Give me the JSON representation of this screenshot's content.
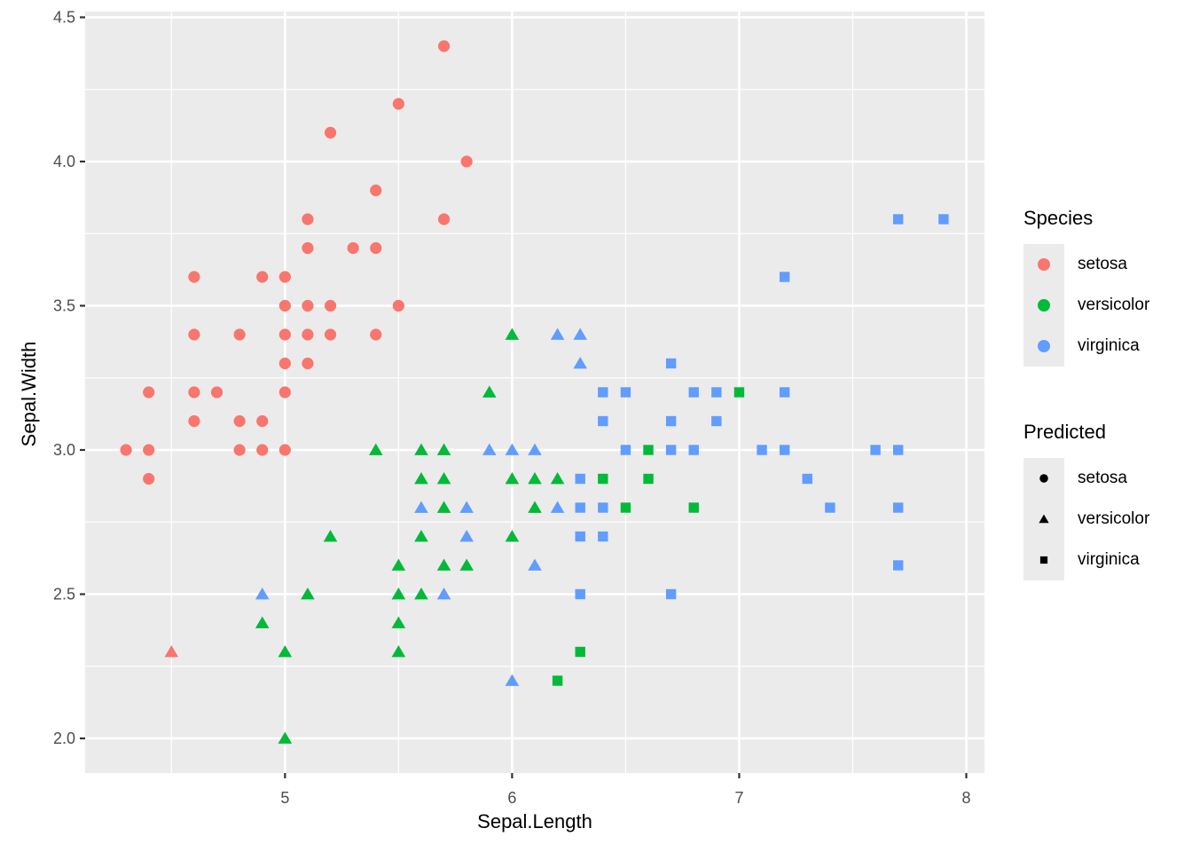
{
  "figure": {
    "background": "#ffffff"
  },
  "axes": {
    "x_title": "Sepal.Length",
    "y_title": "Sepal.Width",
    "tick_color": "#333333",
    "tick_label_color": "#4D4D4D",
    "panel_bg": "#EBEBEB",
    "grid_color": "#FFFFFF"
  },
  "legends": [
    {
      "title": "Species",
      "mode": "color",
      "marker": "circle",
      "items": [
        {
          "label": "setosa",
          "color": "#F8766D",
          "shape": "circle"
        },
        {
          "label": "versicolor",
          "color": "#00BA38",
          "shape": "circle"
        },
        {
          "label": "virginica",
          "color": "#619CFF",
          "shape": "circle"
        }
      ]
    },
    {
      "title": "Predicted",
      "mode": "shape",
      "marker_color": "#000000",
      "items": [
        {
          "label": "setosa",
          "color": "#000000",
          "shape": "circle"
        },
        {
          "label": "versicolor",
          "color": "#000000",
          "shape": "triangle"
        },
        {
          "label": "virginica",
          "color": "#000000",
          "shape": "square"
        }
      ]
    }
  ],
  "chart_data": {
    "type": "scatter",
    "xlabel": "Sepal.Length",
    "ylabel": "Sepal.Width",
    "xlim": [
      4.12,
      8.08
    ],
    "ylim": [
      1.88,
      4.52
    ],
    "x_major_ticks": [
      {
        "v": 5,
        "label": "5"
      },
      {
        "v": 6,
        "label": "6"
      },
      {
        "v": 7,
        "label": "7"
      },
      {
        "v": 8,
        "label": "8"
      }
    ],
    "y_major_ticks": [
      {
        "v": 2.0,
        "label": "2.0"
      },
      {
        "v": 2.5,
        "label": "2.5"
      },
      {
        "v": 3.0,
        "label": "3.0"
      },
      {
        "v": 3.5,
        "label": "3.5"
      },
      {
        "v": 4.0,
        "label": "4.0"
      },
      {
        "v": 4.5,
        "label": "4.5"
      }
    ],
    "x_minor_ticks": [
      4.5,
      5.5,
      6.5,
      7.5
    ],
    "y_minor_ticks": [
      2.25,
      2.75,
      3.25,
      3.75,
      4.25
    ],
    "color_by": "species",
    "shape_by": "predicted",
    "species_colors": {
      "setosa": "#F8766D",
      "versicolor": "#00BA38",
      "virginica": "#619CFF"
    },
    "predicted_shapes": {
      "setosa": "circle",
      "versicolor": "triangle",
      "virginica": "square"
    },
    "points": [
      {
        "x": 4.3,
        "y": 3.0,
        "species": "setosa",
        "predicted": "setosa"
      },
      {
        "x": 4.4,
        "y": 2.9,
        "species": "setosa",
        "predicted": "setosa"
      },
      {
        "x": 4.4,
        "y": 3.0,
        "species": "setosa",
        "predicted": "setosa"
      },
      {
        "x": 4.4,
        "y": 3.2,
        "species": "setosa",
        "predicted": "setosa"
      },
      {
        "x": 4.5,
        "y": 2.3,
        "species": "setosa",
        "predicted": "versicolor"
      },
      {
        "x": 4.6,
        "y": 3.1,
        "species": "setosa",
        "predicted": "setosa"
      },
      {
        "x": 4.6,
        "y": 3.2,
        "species": "setosa",
        "predicted": "setosa"
      },
      {
        "x": 4.6,
        "y": 3.4,
        "species": "setosa",
        "predicted": "setosa"
      },
      {
        "x": 4.6,
        "y": 3.6,
        "species": "setosa",
        "predicted": "setosa"
      },
      {
        "x": 4.7,
        "y": 3.2,
        "species": "setosa",
        "predicted": "setosa"
      },
      {
        "x": 4.8,
        "y": 3.0,
        "species": "setosa",
        "predicted": "setosa"
      },
      {
        "x": 4.8,
        "y": 3.1,
        "species": "setosa",
        "predicted": "setosa"
      },
      {
        "x": 4.8,
        "y": 3.4,
        "species": "setosa",
        "predicted": "setosa"
      },
      {
        "x": 4.9,
        "y": 3.0,
        "species": "setosa",
        "predicted": "setosa"
      },
      {
        "x": 4.9,
        "y": 3.1,
        "species": "setosa",
        "predicted": "setosa"
      },
      {
        "x": 4.9,
        "y": 3.6,
        "species": "setosa",
        "predicted": "setosa"
      },
      {
        "x": 5.0,
        "y": 3.0,
        "species": "setosa",
        "predicted": "setosa"
      },
      {
        "x": 5.0,
        "y": 3.2,
        "species": "setosa",
        "predicted": "setosa"
      },
      {
        "x": 5.0,
        "y": 3.3,
        "species": "setosa",
        "predicted": "setosa"
      },
      {
        "x": 5.0,
        "y": 3.4,
        "species": "setosa",
        "predicted": "setosa"
      },
      {
        "x": 5.0,
        "y": 3.5,
        "species": "setosa",
        "predicted": "setosa"
      },
      {
        "x": 5.0,
        "y": 3.6,
        "species": "setosa",
        "predicted": "setosa"
      },
      {
        "x": 5.1,
        "y": 3.3,
        "species": "setosa",
        "predicted": "setosa"
      },
      {
        "x": 5.1,
        "y": 3.4,
        "species": "setosa",
        "predicted": "setosa"
      },
      {
        "x": 5.1,
        "y": 3.5,
        "species": "setosa",
        "predicted": "setosa"
      },
      {
        "x": 5.1,
        "y": 3.7,
        "species": "setosa",
        "predicted": "setosa"
      },
      {
        "x": 5.1,
        "y": 3.8,
        "species": "setosa",
        "predicted": "setosa"
      },
      {
        "x": 5.2,
        "y": 3.4,
        "species": "setosa",
        "predicted": "setosa"
      },
      {
        "x": 5.2,
        "y": 3.5,
        "species": "setosa",
        "predicted": "setosa"
      },
      {
        "x": 5.2,
        "y": 4.1,
        "species": "setosa",
        "predicted": "setosa"
      },
      {
        "x": 5.3,
        "y": 3.7,
        "species": "setosa",
        "predicted": "setosa"
      },
      {
        "x": 5.4,
        "y": 3.4,
        "species": "setosa",
        "predicted": "setosa"
      },
      {
        "x": 5.4,
        "y": 3.7,
        "species": "setosa",
        "predicted": "setosa"
      },
      {
        "x": 5.4,
        "y": 3.9,
        "species": "setosa",
        "predicted": "setosa"
      },
      {
        "x": 5.5,
        "y": 3.5,
        "species": "setosa",
        "predicted": "setosa"
      },
      {
        "x": 5.5,
        "y": 4.2,
        "species": "setosa",
        "predicted": "setosa"
      },
      {
        "x": 5.7,
        "y": 3.8,
        "species": "setosa",
        "predicted": "setosa"
      },
      {
        "x": 5.7,
        "y": 4.4,
        "species": "setosa",
        "predicted": "setosa"
      },
      {
        "x": 5.8,
        "y": 4.0,
        "species": "setosa",
        "predicted": "setosa"
      },
      {
        "x": 4.9,
        "y": 2.4,
        "species": "versicolor",
        "predicted": "versicolor"
      },
      {
        "x": 5.0,
        "y": 2.0,
        "species": "versicolor",
        "predicted": "versicolor"
      },
      {
        "x": 5.0,
        "y": 2.3,
        "species": "versicolor",
        "predicted": "versicolor"
      },
      {
        "x": 5.1,
        "y": 2.5,
        "species": "versicolor",
        "predicted": "versicolor"
      },
      {
        "x": 5.2,
        "y": 2.7,
        "species": "versicolor",
        "predicted": "versicolor"
      },
      {
        "x": 5.4,
        "y": 3.0,
        "species": "versicolor",
        "predicted": "versicolor"
      },
      {
        "x": 5.5,
        "y": 2.3,
        "species": "versicolor",
        "predicted": "versicolor"
      },
      {
        "x": 5.5,
        "y": 2.4,
        "species": "versicolor",
        "predicted": "versicolor"
      },
      {
        "x": 5.5,
        "y": 2.5,
        "species": "versicolor",
        "predicted": "versicolor"
      },
      {
        "x": 5.5,
        "y": 2.6,
        "species": "versicolor",
        "predicted": "versicolor"
      },
      {
        "x": 5.6,
        "y": 2.5,
        "species": "versicolor",
        "predicted": "versicolor"
      },
      {
        "x": 5.6,
        "y": 2.7,
        "species": "versicolor",
        "predicted": "versicolor"
      },
      {
        "x": 5.6,
        "y": 2.9,
        "species": "versicolor",
        "predicted": "versicolor"
      },
      {
        "x": 5.6,
        "y": 3.0,
        "species": "versicolor",
        "predicted": "versicolor"
      },
      {
        "x": 5.7,
        "y": 2.6,
        "species": "versicolor",
        "predicted": "versicolor"
      },
      {
        "x": 5.7,
        "y": 2.8,
        "species": "versicolor",
        "predicted": "versicolor"
      },
      {
        "x": 5.7,
        "y": 2.9,
        "species": "versicolor",
        "predicted": "versicolor"
      },
      {
        "x": 5.7,
        "y": 3.0,
        "species": "versicolor",
        "predicted": "versicolor"
      },
      {
        "x": 5.8,
        "y": 2.6,
        "species": "versicolor",
        "predicted": "versicolor"
      },
      {
        "x": 5.9,
        "y": 3.2,
        "species": "versicolor",
        "predicted": "versicolor"
      },
      {
        "x": 6.0,
        "y": 2.7,
        "species": "versicolor",
        "predicted": "versicolor"
      },
      {
        "x": 6.0,
        "y": 2.9,
        "species": "versicolor",
        "predicted": "versicolor"
      },
      {
        "x": 6.0,
        "y": 3.4,
        "species": "versicolor",
        "predicted": "versicolor"
      },
      {
        "x": 6.1,
        "y": 2.8,
        "species": "versicolor",
        "predicted": "versicolor"
      },
      {
        "x": 6.1,
        "y": 2.9,
        "species": "versicolor",
        "predicted": "versicolor"
      },
      {
        "x": 6.2,
        "y": 2.9,
        "species": "versicolor",
        "predicted": "versicolor"
      },
      {
        "x": 6.2,
        "y": 2.2,
        "species": "versicolor",
        "predicted": "virginica"
      },
      {
        "x": 6.3,
        "y": 2.3,
        "species": "versicolor",
        "predicted": "virginica"
      },
      {
        "x": 6.4,
        "y": 2.9,
        "species": "versicolor",
        "predicted": "virginica"
      },
      {
        "x": 6.5,
        "y": 2.8,
        "species": "versicolor",
        "predicted": "virginica"
      },
      {
        "x": 6.6,
        "y": 2.9,
        "species": "versicolor",
        "predicted": "virginica"
      },
      {
        "x": 6.6,
        "y": 3.0,
        "species": "versicolor",
        "predicted": "virginica"
      },
      {
        "x": 6.8,
        "y": 2.8,
        "species": "versicolor",
        "predicted": "virginica"
      },
      {
        "x": 7.0,
        "y": 3.2,
        "species": "versicolor",
        "predicted": "virginica"
      },
      {
        "x": 4.9,
        "y": 2.5,
        "species": "virginica",
        "predicted": "versicolor"
      },
      {
        "x": 5.6,
        "y": 2.8,
        "species": "virginica",
        "predicted": "versicolor"
      },
      {
        "x": 5.7,
        "y": 2.5,
        "species": "virginica",
        "predicted": "versicolor"
      },
      {
        "x": 5.8,
        "y": 2.7,
        "species": "virginica",
        "predicted": "versicolor"
      },
      {
        "x": 5.8,
        "y": 2.8,
        "species": "virginica",
        "predicted": "versicolor"
      },
      {
        "x": 5.9,
        "y": 3.0,
        "species": "virginica",
        "predicted": "versicolor"
      },
      {
        "x": 6.0,
        "y": 2.2,
        "species": "virginica",
        "predicted": "versicolor"
      },
      {
        "x": 6.0,
        "y": 3.0,
        "species": "virginica",
        "predicted": "versicolor"
      },
      {
        "x": 6.1,
        "y": 2.6,
        "species": "virginica",
        "predicted": "versicolor"
      },
      {
        "x": 6.1,
        "y": 3.0,
        "species": "virginica",
        "predicted": "versicolor"
      },
      {
        "x": 6.2,
        "y": 2.8,
        "species": "virginica",
        "predicted": "versicolor"
      },
      {
        "x": 6.2,
        "y": 3.4,
        "species": "virginica",
        "predicted": "versicolor"
      },
      {
        "x": 6.3,
        "y": 3.3,
        "species": "virginica",
        "predicted": "versicolor"
      },
      {
        "x": 6.3,
        "y": 3.4,
        "species": "virginica",
        "predicted": "versicolor"
      },
      {
        "x": 6.3,
        "y": 2.5,
        "species": "virginica",
        "predicted": "virginica"
      },
      {
        "x": 6.3,
        "y": 2.7,
        "species": "virginica",
        "predicted": "virginica"
      },
      {
        "x": 6.3,
        "y": 2.8,
        "species": "virginica",
        "predicted": "virginica"
      },
      {
        "x": 6.3,
        "y": 2.9,
        "species": "virginica",
        "predicted": "virginica"
      },
      {
        "x": 6.4,
        "y": 2.7,
        "species": "virginica",
        "predicted": "virginica"
      },
      {
        "x": 6.4,
        "y": 2.8,
        "species": "virginica",
        "predicted": "virginica"
      },
      {
        "x": 6.4,
        "y": 3.1,
        "species": "virginica",
        "predicted": "virginica"
      },
      {
        "x": 6.4,
        "y": 3.2,
        "species": "virginica",
        "predicted": "virginica"
      },
      {
        "x": 6.5,
        "y": 3.0,
        "species": "virginica",
        "predicted": "virginica"
      },
      {
        "x": 6.5,
        "y": 3.2,
        "species": "virginica",
        "predicted": "virginica"
      },
      {
        "x": 6.7,
        "y": 2.5,
        "species": "virginica",
        "predicted": "virginica"
      },
      {
        "x": 6.7,
        "y": 3.0,
        "species": "virginica",
        "predicted": "virginica"
      },
      {
        "x": 6.7,
        "y": 3.1,
        "species": "virginica",
        "predicted": "virginica"
      },
      {
        "x": 6.7,
        "y": 3.3,
        "species": "virginica",
        "predicted": "virginica"
      },
      {
        "x": 6.8,
        "y": 3.0,
        "species": "virginica",
        "predicted": "virginica"
      },
      {
        "x": 6.8,
        "y": 3.2,
        "species": "virginica",
        "predicted": "virginica"
      },
      {
        "x": 6.9,
        "y": 3.1,
        "species": "virginica",
        "predicted": "virginica"
      },
      {
        "x": 6.9,
        "y": 3.2,
        "species": "virginica",
        "predicted": "virginica"
      },
      {
        "x": 7.1,
        "y": 3.0,
        "species": "virginica",
        "predicted": "virginica"
      },
      {
        "x": 7.2,
        "y": 3.0,
        "species": "virginica",
        "predicted": "virginica"
      },
      {
        "x": 7.2,
        "y": 3.2,
        "species": "virginica",
        "predicted": "virginica"
      },
      {
        "x": 7.2,
        "y": 3.6,
        "species": "virginica",
        "predicted": "virginica"
      },
      {
        "x": 7.3,
        "y": 2.9,
        "species": "virginica",
        "predicted": "virginica"
      },
      {
        "x": 7.4,
        "y": 2.8,
        "species": "virginica",
        "predicted": "virginica"
      },
      {
        "x": 7.6,
        "y": 3.0,
        "species": "virginica",
        "predicted": "virginica"
      },
      {
        "x": 7.7,
        "y": 2.6,
        "species": "virginica",
        "predicted": "virginica"
      },
      {
        "x": 7.7,
        "y": 2.8,
        "species": "virginica",
        "predicted": "virginica"
      },
      {
        "x": 7.7,
        "y": 3.0,
        "species": "virginica",
        "predicted": "virginica"
      },
      {
        "x": 7.7,
        "y": 3.8,
        "species": "virginica",
        "predicted": "virginica"
      },
      {
        "x": 7.9,
        "y": 3.8,
        "species": "virginica",
        "predicted": "virginica"
      }
    ]
  }
}
